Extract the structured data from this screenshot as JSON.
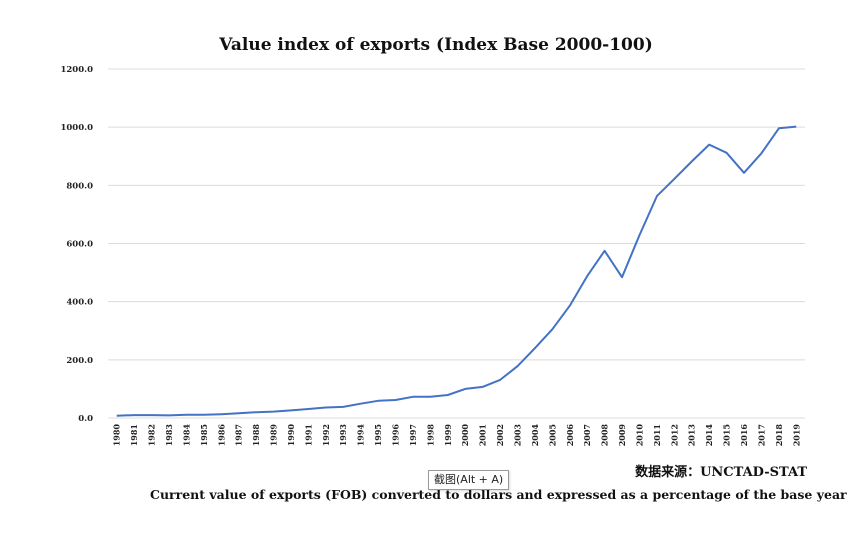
{
  "chart_data": {
    "type": "line",
    "title": "Value index of exports (Index Base 2000-100)",
    "xlabel": "",
    "ylabel": "",
    "ylim": [
      0,
      1200
    ],
    "yticks": [
      "0.0",
      "200.0",
      "400.0",
      "600.0",
      "800.0",
      "1000.0",
      "1200.0"
    ],
    "grid": true,
    "categories": [
      "1980",
      "1981",
      "1982",
      "1983",
      "1984",
      "1985",
      "1986",
      "1987",
      "1988",
      "1989",
      "1990",
      "1991",
      "1992",
      "1993",
      "1994",
      "1995",
      "1996",
      "1997",
      "1998",
      "1999",
      "2000",
      "2001",
      "2002",
      "2003",
      "2004",
      "2005",
      "2006",
      "2007",
      "2008",
      "2009",
      "2010",
      "2011",
      "2012",
      "2013",
      "2014",
      "2015",
      "2016",
      "2017",
      "2018",
      "2019"
    ],
    "series": [
      {
        "values": [
          8,
          10,
          10,
          9,
          11,
          11,
          13,
          16,
          20,
          22,
          26,
          31,
          36,
          38,
          49,
          59,
          62,
          73,
          73,
          79,
          100,
          107,
          131,
          178,
          240,
          305,
          386,
          488,
          575,
          484,
          629,
          763,
          822,
          882,
          940,
          912,
          843,
          910,
          996,
          1002
        ],
        "color": "#4472c4"
      }
    ]
  },
  "source_text": "数据来源：UNCTAD-STAT",
  "note_text": "Current value of exports (FOB) converted to dollars and expressed as a percentage of the base year",
  "tooltip_text": "截图(Alt + A)"
}
